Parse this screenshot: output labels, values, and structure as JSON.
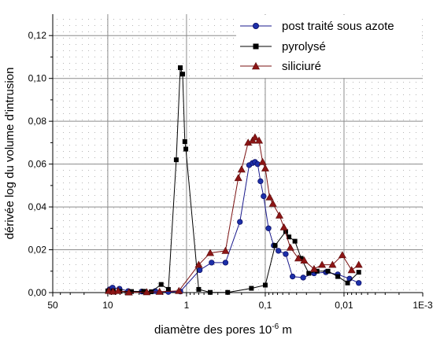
{
  "chart_data": {
    "type": "line",
    "xlabel": "diamètre des pores 10",
    "xlabel_sup": "-6",
    "xlabel_unit": " m",
    "ylabel": "dérivée log du volume d'intrusion",
    "x_scale": "log-reversed",
    "xlim": [
      50,
      0.001
    ],
    "ylim": [
      0,
      0.13
    ],
    "x_tick_labels": [
      {
        "value": 50,
        "label": "50"
      },
      {
        "value": 10,
        "label": "10"
      },
      {
        "value": 1,
        "label": "1"
      },
      {
        "value": 0.1,
        "label": "0,1"
      },
      {
        "value": 0.01,
        "label": "0,01"
      },
      {
        "value": 0.001,
        "label": "1E-3"
      }
    ],
    "y_tick_labels": [
      {
        "value": 0.0,
        "label": "0,00"
      },
      {
        "value": 0.02,
        "label": "0,02"
      },
      {
        "value": 0.04,
        "label": "0,04"
      },
      {
        "value": 0.06,
        "label": "0,06"
      },
      {
        "value": 0.08,
        "label": "0,08"
      },
      {
        "value": 0.1,
        "label": "0,10"
      },
      {
        "value": 0.12,
        "label": "0,12"
      }
    ],
    "grid": true,
    "legend_position": "top-right",
    "series": [
      {
        "name": "post traité sous azote",
        "color": "#1a1a8c",
        "marker": "circle",
        "marker_color": "#1c2fa8",
        "points": [
          [
            9.5,
            0.0015
          ],
          [
            8.7,
            0.0023
          ],
          [
            7.1,
            0.0018
          ],
          [
            5.5,
            0.0007
          ],
          [
            3.7,
            0.0005
          ],
          [
            2.5,
            0.0007
          ],
          [
            1.7,
            0.0003
          ],
          [
            1.2,
            0.0005
          ],
          [
            0.68,
            0.0105
          ],
          [
            0.48,
            0.014
          ],
          [
            0.32,
            0.014
          ],
          [
            0.21,
            0.033
          ],
          [
            0.16,
            0.0595
          ],
          [
            0.145,
            0.0605
          ],
          [
            0.135,
            0.061
          ],
          [
            0.125,
            0.06
          ],
          [
            0.115,
            0.052
          ],
          [
            0.105,
            0.045
          ],
          [
            0.091,
            0.03
          ],
          [
            0.078,
            0.022
          ],
          [
            0.068,
            0.0195
          ],
          [
            0.055,
            0.018
          ],
          [
            0.045,
            0.0075
          ],
          [
            0.033,
            0.007
          ],
          [
            0.024,
            0.009
          ],
          [
            0.017,
            0.0095
          ],
          [
            0.012,
            0.0085
          ],
          [
            0.0085,
            0.0065
          ],
          [
            0.0065,
            0.0045
          ]
        ]
      },
      {
        "name": "pyrolysé",
        "color": "#000000",
        "marker": "square",
        "marker_color": "#000000",
        "points": [
          [
            10,
            0.0008
          ],
          [
            8.5,
            0.0008
          ],
          [
            7,
            0.0006
          ],
          [
            5,
            0.0005
          ],
          [
            3.5,
            0.0006
          ],
          [
            2.8,
            0.0004
          ],
          [
            2.1,
            0.0038
          ],
          [
            1.7,
            0.0015
          ],
          [
            1.35,
            0.062
          ],
          [
            1.2,
            0.105
          ],
          [
            1.12,
            0.102
          ],
          [
            1.05,
            0.0705
          ],
          [
            1.02,
            0.067
          ],
          [
            0.7,
            0.0015
          ],
          [
            0.5,
            0.0001
          ],
          [
            0.3,
            0.0001
          ],
          [
            0.15,
            0.002
          ],
          [
            0.1,
            0.0035
          ],
          [
            0.075,
            0.022
          ],
          [
            0.055,
            0.0285
          ],
          [
            0.05,
            0.026
          ],
          [
            0.042,
            0.024
          ],
          [
            0.035,
            0.016
          ],
          [
            0.028,
            0.009
          ],
          [
            0.022,
            0.01
          ],
          [
            0.016,
            0.01
          ],
          [
            0.012,
            0.0075
          ],
          [
            0.009,
            0.0045
          ],
          [
            0.0065,
            0.0095
          ]
        ]
      },
      {
        "name": "siliciuré",
        "color": "#7a1010",
        "marker": "triangle",
        "marker_color": "#8c1515",
        "points": [
          [
            9.7,
            0.0008
          ],
          [
            8.6,
            0.0005
          ],
          [
            7.4,
            0.0008
          ],
          [
            5.4,
            0.0001
          ],
          [
            3.2,
            0.0002
          ],
          [
            2.2,
            0.0004
          ],
          [
            1.25,
            0.0008
          ],
          [
            0.7,
            0.013
          ],
          [
            0.5,
            0.0185
          ],
          [
            0.32,
            0.0195
          ],
          [
            0.22,
            0.0535
          ],
          [
            0.2,
            0.0575
          ],
          [
            0.165,
            0.07
          ],
          [
            0.145,
            0.071
          ],
          [
            0.135,
            0.0725
          ],
          [
            0.12,
            0.071
          ],
          [
            0.108,
            0.061
          ],
          [
            0.1,
            0.058
          ],
          [
            0.088,
            0.0445
          ],
          [
            0.08,
            0.0415
          ],
          [
            0.066,
            0.036
          ],
          [
            0.058,
            0.0305
          ],
          [
            0.048,
            0.021
          ],
          [
            0.038,
            0.016
          ],
          [
            0.032,
            0.015
          ],
          [
            0.024,
            0.011
          ],
          [
            0.019,
            0.013
          ],
          [
            0.014,
            0.013
          ],
          [
            0.0105,
            0.0175
          ],
          [
            0.008,
            0.0105
          ],
          [
            0.0065,
            0.013
          ]
        ]
      }
    ]
  }
}
